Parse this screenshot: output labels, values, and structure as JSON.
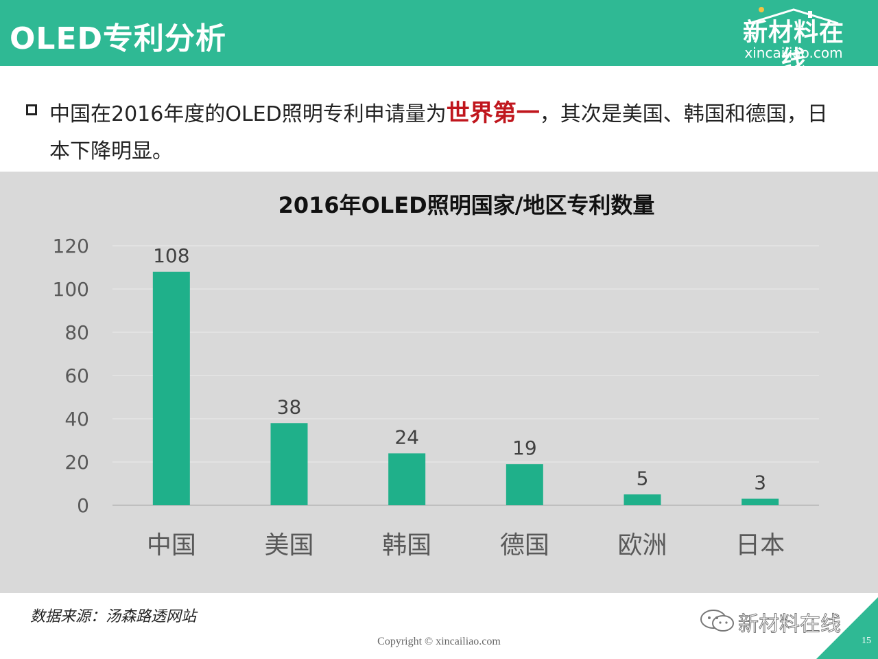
{
  "header": {
    "title": "OLED专利分析",
    "logo_cn": "新材料在线",
    "logo_en": "xincailiao.com"
  },
  "statement": {
    "before": "中国在2016年度的OLED照明专利申请量为",
    "highlight": "世界第一",
    "after": "，其次是美国、韩国和德国，日本下降明显。"
  },
  "chart_data": {
    "type": "bar",
    "title": "2016年OLED照明国家/地区专利数量",
    "categories": [
      "中国",
      "美国",
      "韩国",
      "德国",
      "欧洲",
      "日本"
    ],
    "values": [
      108,
      38,
      24,
      19,
      5,
      3
    ],
    "xlabel": "",
    "ylabel": "",
    "ylim": [
      0,
      120
    ],
    "yticks": [
      0,
      20,
      40,
      60,
      80,
      100,
      120
    ],
    "grid": true,
    "legend": "none",
    "bar_color": "#1fb08a"
  },
  "footer": {
    "source": "数据来源：汤森路透网站",
    "copyright": "Copyright © xincailiao.com",
    "wechat": "新材料在线",
    "page": "15"
  }
}
